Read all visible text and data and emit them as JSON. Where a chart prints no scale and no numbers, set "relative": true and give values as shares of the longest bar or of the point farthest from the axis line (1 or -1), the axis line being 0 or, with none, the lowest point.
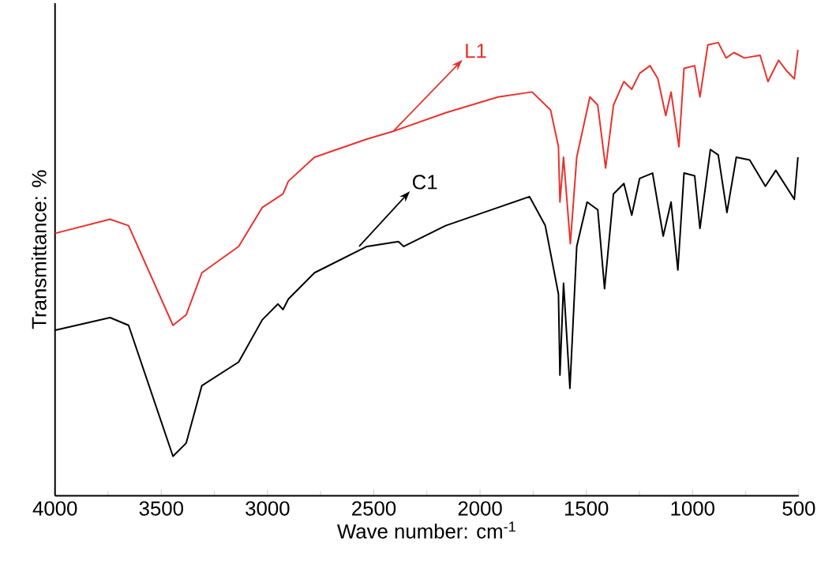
{
  "chart_data": {
    "type": "line",
    "relative": true,
    "xlabel": "Wave number: cm$^{-1}$",
    "ylabel": "Transmittance: %",
    "xlim": [
      4000,
      500
    ],
    "xticks": [
      4000,
      3500,
      3000,
      2500,
      2000,
      1500,
      1000,
      500
    ],
    "grid": false,
    "legend": "top",
    "marker": "none",
    "line_style": "solid",
    "series": [
      {
        "name": "L1",
        "color": "#e8322d",
        "x": [
          4000,
          3741,
          3654,
          3445,
          3383,
          3309,
          3136,
          3025,
          2927,
          2902,
          2779,
          2532,
          2409,
          2162,
          1915,
          1755,
          1668,
          1631,
          1624,
          1607,
          1575,
          1545,
          1483,
          1446,
          1409,
          1372,
          1323,
          1286,
          1249,
          1200,
          1163,
          1126,
          1101,
          1064,
          1040,
          990,
          965,
          928,
          879,
          842,
          805,
          756,
          682,
          645,
          595,
          558,
          521,
          504
        ],
        "values": [
          0.579,
          0.61,
          0.596,
          0.376,
          0.399,
          0.492,
          0.55,
          0.636,
          0.666,
          0.694,
          0.747,
          0.787,
          0.804,
          0.845,
          0.88,
          0.891,
          0.851,
          0.77,
          0.648,
          0.747,
          0.556,
          0.747,
          0.88,
          0.862,
          0.723,
          0.862,
          0.914,
          0.897,
          0.932,
          0.949,
          0.92,
          0.839,
          0.891,
          0.77,
          0.943,
          0.949,
          0.88,
          0.995,
          1.0,
          0.966,
          0.978,
          0.966,
          0.972,
          0.914,
          0.961,
          0.938,
          0.92,
          0.984
        ]
      },
      {
        "name": "C1",
        "color": "#000000",
        "x": [
          4000,
          3741,
          3654,
          3445,
          3383,
          3309,
          3136,
          3025,
          2951,
          2927,
          2902,
          2779,
          2532,
          2384,
          2359,
          2162,
          1915,
          1767,
          1693,
          1631,
          1624,
          1607,
          1577,
          1545,
          1496,
          1446,
          1414,
          1372,
          1323,
          1286,
          1249,
          1188,
          1138,
          1101,
          1069,
          1040,
          990,
          965,
          916,
          879,
          838,
          794,
          731,
          657,
          608,
          521,
          504
        ],
        "values": [
          0.365,
          0.393,
          0.376,
          0.087,
          0.116,
          0.243,
          0.295,
          0.388,
          0.423,
          0.411,
          0.434,
          0.492,
          0.55,
          0.561,
          0.55,
          0.596,
          0.636,
          0.66,
          0.596,
          0.445,
          0.266,
          0.469,
          0.237,
          0.55,
          0.648,
          0.631,
          0.457,
          0.666,
          0.689,
          0.619,
          0.7,
          0.712,
          0.573,
          0.648,
          0.498,
          0.712,
          0.706,
          0.59,
          0.764,
          0.752,
          0.625,
          0.747,
          0.741,
          0.683,
          0.718,
          0.654,
          0.747
        ]
      }
    ]
  }
}
